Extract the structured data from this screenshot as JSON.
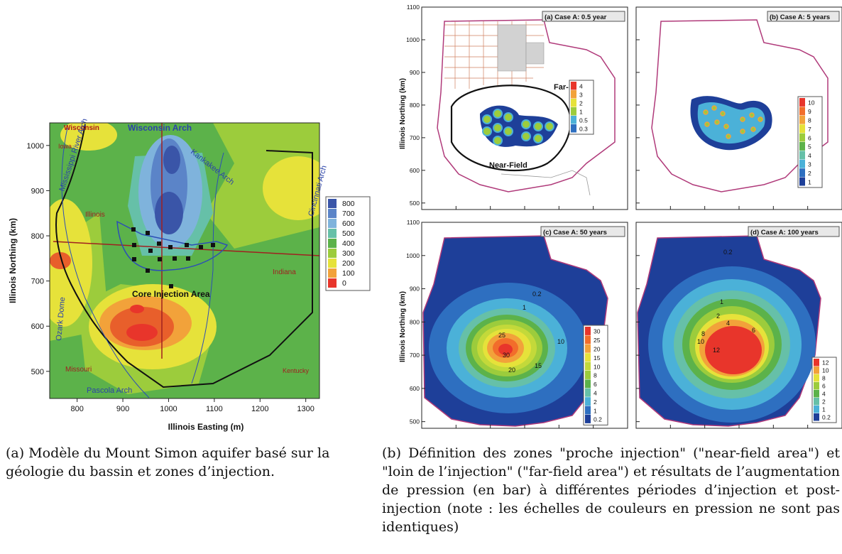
{
  "figA": {
    "chart_data": {
      "type": "contour-map",
      "xlabel": "Illinois Easting (m)",
      "ylabel": "Illinois Northing (km)",
      "xlim": [
        740,
        1330
      ],
      "ylim": [
        440,
        1050
      ],
      "xticks": [
        "800",
        "900",
        "1000",
        "1100",
        "1200",
        "1300"
      ],
      "yticks": [
        "500",
        "600",
        "700",
        "800",
        "900",
        "1000"
      ],
      "legend_levels": [
        "800",
        "700",
        "600",
        "500",
        "400",
        "300",
        "200",
        "100",
        "0"
      ],
      "legend_colors": [
        "#3a55a8",
        "#5b84c8",
        "#7fb3dc",
        "#66c0a8",
        "#5cb24a",
        "#9ccc3c",
        "#e6e23a",
        "#f2a23a",
        "#e8352b"
      ]
    },
    "labels": {
      "wisconsin": "Wisconsin",
      "wisconsin_arch": "Wisconsin Arch",
      "iowa": "Iowa",
      "illinois": "Illinois",
      "indiana": "Indiana",
      "missouri": "Missouri",
      "kentucky": "Kentucky",
      "mississippi_arch": "Mississippi River Arch",
      "kankakee_arch": "Kankakee Arch",
      "cincinnati_arch": "Cincinnati Arch",
      "ozark_dome": "Ozark Dome",
      "pascola_arch": "Pascola Arch",
      "core_area": "Core Injection Area"
    }
  },
  "figB": {
    "ylabel": "Illinois Northing (km)",
    "panels": [
      {
        "title": "(a) Case A: 0.5 year",
        "far_field": "Far-Field",
        "near_field": "Near-Field",
        "chart_data": {
          "type": "contour-map",
          "ylim": [
            480,
            1100
          ],
          "yticks": [
            "500",
            "600",
            "700",
            "800",
            "900",
            "1000",
            "1100"
          ],
          "legend_levels": [
            "4",
            "3",
            "2",
            "1",
            "0.5",
            "0.3"
          ],
          "legend_colors": [
            "#e8352b",
            "#f2a23a",
            "#e6e23a",
            "#9ccc3c",
            "#4bb1d8",
            "#2e6fc0"
          ]
        }
      },
      {
        "title": "(b) Case A: 5 years",
        "chart_data": {
          "type": "contour-map",
          "ylim": [
            480,
            1100
          ],
          "legend_levels": [
            "10",
            "9",
            "8",
            "7",
            "6",
            "5",
            "4",
            "3",
            "2",
            "1"
          ],
          "legend_colors": [
            "#e8352b",
            "#f26d2b",
            "#f2a23a",
            "#e6e23a",
            "#9ccc3c",
            "#5cb24a",
            "#66c0a8",
            "#4bb1d8",
            "#2e6fc0",
            "#1e3f99"
          ]
        }
      },
      {
        "title": "(c) Case A: 50 years",
        "contour_labels": [
          "0.2",
          "1",
          "25",
          "10",
          "30",
          "15",
          "20"
        ],
        "chart_data": {
          "type": "contour-map",
          "ylim": [
            480,
            1100
          ],
          "yticks": [
            "500",
            "600",
            "700",
            "800",
            "900",
            "1000",
            "1100"
          ],
          "legend_levels": [
            "30",
            "25",
            "20",
            "15",
            "10",
            "8",
            "6",
            "4",
            "2",
            "1",
            "0.2"
          ],
          "legend_colors": [
            "#e8352b",
            "#f26d2b",
            "#f2a23a",
            "#e6e23a",
            "#c3d93a",
            "#9ccc3c",
            "#5cb24a",
            "#66c0a8",
            "#4bb1d8",
            "#2e6fc0",
            "#1e3f99"
          ]
        }
      },
      {
        "title": "(d) Case A: 100 years",
        "contour_labels": [
          "0.2",
          "1",
          "2",
          "4",
          "6",
          "8",
          "10",
          "12"
        ],
        "chart_data": {
          "type": "contour-map",
          "ylim": [
            480,
            1100
          ],
          "legend_levels": [
            "12",
            "10",
            "8",
            "6",
            "4",
            "2",
            "1",
            "0.2"
          ],
          "legend_colors": [
            "#e8352b",
            "#f2a23a",
            "#e6e23a",
            "#9ccc3c",
            "#5cb24a",
            "#66c0a8",
            "#4bb1d8",
            "#1e3f99"
          ]
        }
      }
    ]
  },
  "captions": {
    "a": "(a) Modèle du Mount Simon aquifer basé sur la géologie du bassin et zones d’injection.",
    "b": "(b) Définition des zones \"proche injection\" (\"near-field area\") et \"loin de l’injection\" (\"far-field area\") et résultats de l’augmentation de pression (en bar) à différentes périodes d’injection et post-injection (note : les échelles de couleurs en pression ne sont pas identiques)"
  }
}
